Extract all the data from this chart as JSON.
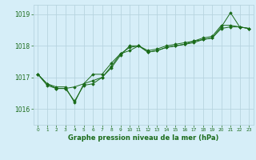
{
  "title": "Graphe pression niveau de la mer (hPa)",
  "bg_color": "#d6eef8",
  "grid_color": "#b8d4e0",
  "line_color": "#1a6b1a",
  "marker_color": "#1a6b1a",
  "xlim": [
    -0.5,
    23.5
  ],
  "ylim": [
    1015.5,
    1019.3
  ],
  "yticks": [
    1016,
    1017,
    1018,
    1019
  ],
  "xticks": [
    0,
    1,
    2,
    3,
    4,
    5,
    6,
    7,
    8,
    9,
    10,
    11,
    12,
    13,
    14,
    15,
    16,
    17,
    18,
    19,
    20,
    21,
    22,
    23
  ],
  "series": [
    [
      1017.1,
      1016.8,
      1016.7,
      1016.7,
      1016.2,
      1016.8,
      1016.9,
      1017.0,
      1017.35,
      1017.75,
      1017.95,
      1018.0,
      1017.8,
      1017.85,
      1017.95,
      1018.0,
      1018.05,
      1018.15,
      1018.2,
      1018.25,
      1018.6,
      1019.05,
      1018.6,
      1018.55
    ],
    [
      1017.1,
      1016.8,
      1016.65,
      1016.65,
      1016.7,
      1016.8,
      1017.1,
      1017.1,
      1017.45,
      1017.75,
      1017.85,
      1018.0,
      1017.85,
      1017.9,
      1018.0,
      1018.05,
      1018.1,
      1018.15,
      1018.25,
      1018.3,
      1018.65,
      1018.65,
      1018.6,
      1018.55
    ],
    [
      1017.1,
      1016.75,
      1016.65,
      1016.65,
      1016.25,
      1016.75,
      1016.8,
      1017.0,
      1017.3,
      1017.7,
      1018.0,
      1018.0,
      1017.8,
      1017.85,
      1017.95,
      1018.0,
      1018.05,
      1018.1,
      1018.2,
      1018.25,
      1018.55,
      1018.6,
      1018.6,
      1018.55
    ]
  ]
}
